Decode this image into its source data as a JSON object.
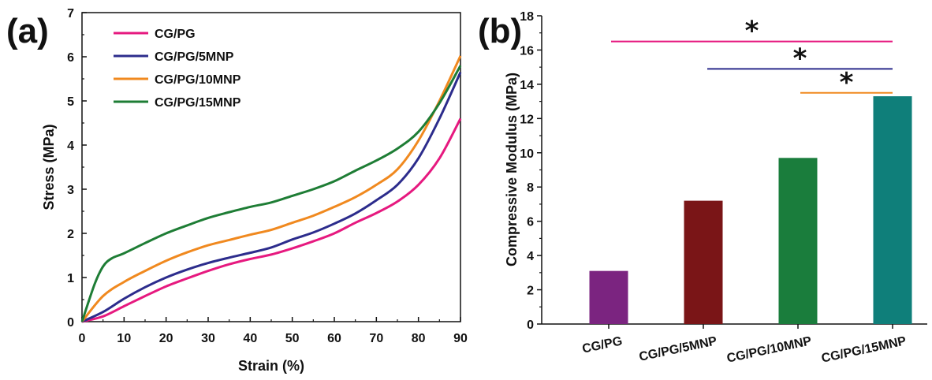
{
  "chart_data": [
    {
      "type": "line",
      "panel": "(a)",
      "xlabel": "Strain (%)",
      "ylabel": "Stress (MPa)",
      "xlim": [
        0,
        90
      ],
      "ylim": [
        0,
        7
      ],
      "xticks": [
        0,
        10,
        20,
        30,
        40,
        50,
        60,
        70,
        80,
        90
      ],
      "yticks": [
        0,
        1,
        2,
        3,
        4,
        5,
        6,
        7
      ],
      "legend": "top-left",
      "grid": false,
      "series": [
        {
          "name": "CG/PG",
          "color": "#e6197f",
          "x": [
            0,
            5,
            10,
            15,
            20,
            25,
            30,
            35,
            40,
            45,
            50,
            55,
            60,
            65,
            70,
            75,
            80,
            85,
            90
          ],
          "y": [
            0,
            0.12,
            0.35,
            0.58,
            0.8,
            0.98,
            1.15,
            1.3,
            1.42,
            1.52,
            1.66,
            1.82,
            2.0,
            2.24,
            2.46,
            2.72,
            3.1,
            3.7,
            4.6
          ]
        },
        {
          "name": "CG/PG/5MNP",
          "color": "#2c2c8c",
          "x": [
            0,
            5,
            10,
            15,
            20,
            25,
            30,
            35,
            40,
            45,
            50,
            55,
            60,
            65,
            70,
            75,
            80,
            85,
            90
          ],
          "y": [
            0,
            0.22,
            0.52,
            0.78,
            1.0,
            1.18,
            1.33,
            1.45,
            1.56,
            1.68,
            1.86,
            2.02,
            2.22,
            2.45,
            2.75,
            3.1,
            3.7,
            4.6,
            5.65
          ]
        },
        {
          "name": "CG/PG/10MNP",
          "color": "#f0891f",
          "x": [
            0,
            5,
            10,
            15,
            20,
            25,
            30,
            35,
            40,
            45,
            50,
            55,
            60,
            65,
            70,
            75,
            80,
            85,
            90
          ],
          "y": [
            0,
            0.58,
            0.9,
            1.15,
            1.38,
            1.57,
            1.73,
            1.85,
            1.97,
            2.08,
            2.24,
            2.4,
            2.6,
            2.82,
            3.1,
            3.45,
            4.1,
            5.0,
            6.02
          ]
        },
        {
          "name": "CG/PG/15MNP",
          "color": "#1e7d35",
          "x": [
            0,
            3,
            5,
            7,
            10,
            15,
            20,
            25,
            30,
            35,
            40,
            45,
            50,
            55,
            60,
            65,
            70,
            75,
            80,
            85,
            90
          ],
          "y": [
            0,
            0.85,
            1.25,
            1.43,
            1.55,
            1.78,
            2.0,
            2.18,
            2.35,
            2.48,
            2.6,
            2.7,
            2.85,
            3.0,
            3.18,
            3.42,
            3.65,
            3.92,
            4.3,
            4.95,
            5.8
          ]
        }
      ]
    },
    {
      "type": "bar",
      "panel": "(b)",
      "ylabel": "Compressive Modulus (MPa)",
      "xlabel": "",
      "ylim": [
        0,
        18
      ],
      "yticks": [
        0,
        2,
        4,
        6,
        8,
        10,
        12,
        14,
        16,
        18
      ],
      "grid": false,
      "categories": [
        "CG/PG",
        "CG/PG/5MNP",
        "CG/PG/10MNP",
        "CG/PG/15MNP"
      ],
      "values": [
        3.1,
        7.2,
        9.7,
        13.3
      ],
      "colors": [
        "#7b2480",
        "#7a1517",
        "#1a7d3c",
        "#0f7f7a"
      ],
      "significance": [
        {
          "from": 0,
          "to": 3,
          "y": 16.5,
          "color": "#e6197f",
          "label": "*"
        },
        {
          "from": 1,
          "to": 3,
          "y": 14.9,
          "color": "#2c2c8c",
          "label": "*"
        },
        {
          "from": 2,
          "to": 3,
          "y": 13.5,
          "color": "#f0891f",
          "label": "*"
        }
      ]
    }
  ]
}
